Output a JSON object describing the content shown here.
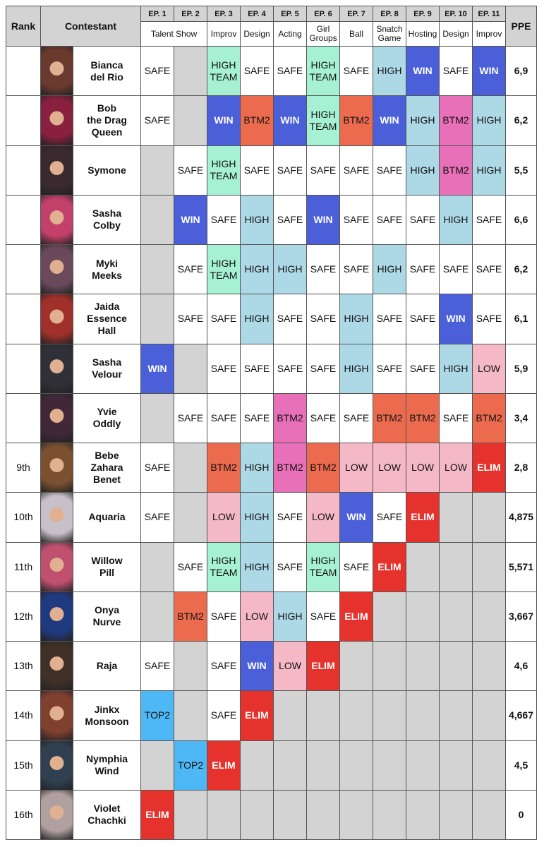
{
  "header": {
    "rank": "Rank",
    "contestant": "Contestant",
    "ppe": "PPE",
    "episodes": [
      "EP. 1",
      "EP. 2",
      "EP. 3",
      "EP. 4",
      "EP. 5",
      "EP. 6",
      "EP. 7",
      "EP. 8",
      "EP. 9",
      "EP. 10",
      "EP. 11"
    ],
    "challenges": [
      {
        "text": "Talent Show",
        "span": 2
      },
      {
        "text": "Improv",
        "span": 1
      },
      {
        "text": "Design",
        "span": 1
      },
      {
        "text": "Acting",
        "span": 1
      },
      {
        "text": "Girl\nGroups",
        "span": 1
      },
      {
        "text": "Ball",
        "span": 1
      },
      {
        "text": "Snatch\nGame",
        "span": 1
      },
      {
        "text": "Hosting",
        "span": 1
      },
      {
        "text": "Design",
        "span": 1
      },
      {
        "text": "Improv",
        "span": 1
      }
    ]
  },
  "rows": [
    {
      "rank": null,
      "name": "Bianca\ndel Rio",
      "ppe": "6,9",
      "cells": [
        {
          "text": "SAFE",
          "color": "#ffffff"
        },
        null,
        {
          "text": "HIGH\nTEAM",
          "color": "#a6f0d4"
        },
        {
          "text": "SAFE",
          "color": "#ffffff"
        },
        {
          "text": "SAFE",
          "color": "#ffffff"
        },
        {
          "text": "HIGH\nTEAM",
          "color": "#a6f0d4"
        },
        {
          "text": "SAFE",
          "color": "#ffffff"
        },
        {
          "text": "HIGH",
          "color": "#add8e6"
        },
        {
          "text": "WIN",
          "color": "#4a5fd8"
        },
        {
          "text": "SAFE",
          "color": "#ffffff"
        },
        {
          "text": "WIN",
          "color": "#4a5fd8"
        }
      ]
    },
    {
      "rank": null,
      "name": "Bob\nthe Drag\nQueen",
      "ppe": "6,2",
      "cells": [
        {
          "text": "SAFE",
          "color": "#ffffff"
        },
        null,
        {
          "text": "WIN",
          "color": "#4a5fd8"
        },
        {
          "text": "BTM2",
          "color": "#ec6b4f"
        },
        {
          "text": "WIN",
          "color": "#4a5fd8"
        },
        {
          "text": "HIGH\nTEAM",
          "color": "#a6f0d4"
        },
        {
          "text": "BTM2",
          "color": "#ec6b4f"
        },
        {
          "text": "WIN",
          "color": "#4a5fd8"
        },
        {
          "text": "HIGH",
          "color": "#add8e6"
        },
        {
          "text": "BTM2",
          "color": "#e870b8"
        },
        {
          "text": "HIGH",
          "color": "#add8e6"
        }
      ]
    },
    {
      "rank": null,
      "name": "Symone",
      "ppe": "5,5",
      "cells": [
        null,
        {
          "text": "SAFE",
          "color": "#ffffff"
        },
        {
          "text": "HIGH\nTEAM",
          "color": "#a6f0d4"
        },
        {
          "text": "SAFE",
          "color": "#ffffff"
        },
        {
          "text": "SAFE",
          "color": "#ffffff"
        },
        {
          "text": "SAFE",
          "color": "#ffffff"
        },
        {
          "text": "SAFE",
          "color": "#ffffff"
        },
        {
          "text": "SAFE",
          "color": "#ffffff"
        },
        {
          "text": "HIGH",
          "color": "#add8e6"
        },
        {
          "text": "BTM2",
          "color": "#e870b8"
        },
        {
          "text": "HIGH",
          "color": "#add8e6"
        }
      ]
    },
    {
      "rank": null,
      "name": "Sasha\nColby",
      "ppe": "6,6",
      "cells": [
        null,
        {
          "text": "WIN",
          "color": "#4a5fd8"
        },
        {
          "text": "SAFE",
          "color": "#ffffff"
        },
        {
          "text": "HIGH",
          "color": "#add8e6"
        },
        {
          "text": "SAFE",
          "color": "#ffffff"
        },
        {
          "text": "WIN",
          "color": "#4a5fd8"
        },
        {
          "text": "SAFE",
          "color": "#ffffff"
        },
        {
          "text": "SAFE",
          "color": "#ffffff"
        },
        {
          "text": "SAFE",
          "color": "#ffffff"
        },
        {
          "text": "HIGH",
          "color": "#add8e6"
        },
        {
          "text": "SAFE",
          "color": "#ffffff"
        }
      ]
    },
    {
      "rank": null,
      "name": "Myki\nMeeks",
      "ppe": "6,2",
      "cells": [
        null,
        {
          "text": "SAFE",
          "color": "#ffffff"
        },
        {
          "text": "HIGH\nTEAM",
          "color": "#a6f0d4"
        },
        {
          "text": "HIGH",
          "color": "#add8e6"
        },
        {
          "text": "HIGH",
          "color": "#add8e6"
        },
        {
          "text": "SAFE",
          "color": "#ffffff"
        },
        {
          "text": "SAFE",
          "color": "#ffffff"
        },
        {
          "text": "HIGH",
          "color": "#add8e6"
        },
        {
          "text": "SAFE",
          "color": "#ffffff"
        },
        {
          "text": "SAFE",
          "color": "#ffffff"
        },
        {
          "text": "SAFE",
          "color": "#ffffff"
        }
      ]
    },
    {
      "rank": null,
      "name": "Jaida\nEssence\nHall",
      "ppe": "6,1",
      "cells": [
        null,
        {
          "text": "SAFE",
          "color": "#ffffff"
        },
        {
          "text": "SAFE",
          "color": "#ffffff"
        },
        {
          "text": "HIGH",
          "color": "#add8e6"
        },
        {
          "text": "SAFE",
          "color": "#ffffff"
        },
        {
          "text": "SAFE",
          "color": "#ffffff"
        },
        {
          "text": "HIGH",
          "color": "#add8e6"
        },
        {
          "text": "SAFE",
          "color": "#ffffff"
        },
        {
          "text": "SAFE",
          "color": "#ffffff"
        },
        {
          "text": "WIN",
          "color": "#4a5fd8"
        },
        {
          "text": "SAFE",
          "color": "#ffffff"
        }
      ]
    },
    {
      "rank": null,
      "name": "Sasha\nVelour",
      "ppe": "5,9",
      "cells": [
        {
          "text": "WIN",
          "color": "#4a5fd8"
        },
        null,
        {
          "text": "SAFE",
          "color": "#ffffff"
        },
        {
          "text": "SAFE",
          "color": "#ffffff"
        },
        {
          "text": "SAFE",
          "color": "#ffffff"
        },
        {
          "text": "SAFE",
          "color": "#ffffff"
        },
        {
          "text": "HIGH",
          "color": "#add8e6"
        },
        {
          "text": "SAFE",
          "color": "#ffffff"
        },
        {
          "text": "SAFE",
          "color": "#ffffff"
        },
        {
          "text": "HIGH",
          "color": "#add8e6"
        },
        {
          "text": "LOW",
          "color": "#f4b8c6"
        }
      ]
    },
    {
      "rank": null,
      "name": "Yvie\nOddly",
      "ppe": "3,4",
      "cells": [
        null,
        {
          "text": "SAFE",
          "color": "#ffffff"
        },
        {
          "text": "SAFE",
          "color": "#ffffff"
        },
        {
          "text": "SAFE",
          "color": "#ffffff"
        },
        {
          "text": "BTM2",
          "color": "#e870b8"
        },
        {
          "text": "SAFE",
          "color": "#ffffff"
        },
        {
          "text": "SAFE",
          "color": "#ffffff"
        },
        {
          "text": "BTM2",
          "color": "#ec6b4f"
        },
        {
          "text": "BTM2",
          "color": "#ec6b4f"
        },
        {
          "text": "SAFE",
          "color": "#ffffff"
        },
        {
          "text": "BTM2",
          "color": "#ec6b4f"
        }
      ]
    },
    {
      "rank": "9th",
      "name": "Bebe\nZahara\nBenet",
      "ppe": "2,8",
      "cells": [
        {
          "text": "SAFE",
          "color": "#ffffff"
        },
        null,
        {
          "text": "BTM2",
          "color": "#ec6b4f"
        },
        {
          "text": "HIGH",
          "color": "#add8e6"
        },
        {
          "text": "BTM2",
          "color": "#e870b8"
        },
        {
          "text": "BTM2",
          "color": "#ec6b4f"
        },
        {
          "text": "LOW",
          "color": "#f4b8c6"
        },
        {
          "text": "LOW",
          "color": "#f4b8c6"
        },
        {
          "text": "LOW",
          "color": "#f4b8c6"
        },
        {
          "text": "LOW",
          "color": "#f4b8c6"
        },
        {
          "text": "ELIM",
          "color": "#e5322d"
        }
      ]
    },
    {
      "rank": "10th",
      "name": "Aquaria",
      "ppe": "4,875",
      "cells": [
        {
          "text": "SAFE",
          "color": "#ffffff"
        },
        null,
        {
          "text": "LOW",
          "color": "#f4b8c6"
        },
        {
          "text": "HIGH",
          "color": "#add8e6"
        },
        {
          "text": "SAFE",
          "color": "#ffffff"
        },
        {
          "text": "LOW",
          "color": "#f4b8c6"
        },
        {
          "text": "WIN",
          "color": "#4a5fd8"
        },
        {
          "text": "SAFE",
          "color": "#ffffff"
        },
        {
          "text": "ELIM",
          "color": "#e5322d"
        },
        null,
        null
      ]
    },
    {
      "rank": "11th",
      "name": "Willow\nPill",
      "ppe": "5,571",
      "cells": [
        null,
        {
          "text": "SAFE",
          "color": "#ffffff"
        },
        {
          "text": "HIGH\nTEAM",
          "color": "#a6f0d4"
        },
        {
          "text": "HIGH",
          "color": "#add8e6"
        },
        {
          "text": "SAFE",
          "color": "#ffffff"
        },
        {
          "text": "HIGH\nTEAM",
          "color": "#a6f0d4"
        },
        {
          "text": "SAFE",
          "color": "#ffffff"
        },
        {
          "text": "ELIM",
          "color": "#e5322d"
        },
        null,
        null,
        null
      ]
    },
    {
      "rank": "12th",
      "name": "Onya\nNurve",
      "ppe": "3,667",
      "cells": [
        null,
        {
          "text": "BTM2",
          "color": "#ec6b4f"
        },
        {
          "text": "SAFE",
          "color": "#ffffff"
        },
        {
          "text": "LOW",
          "color": "#f4b8c6"
        },
        {
          "text": "HIGH",
          "color": "#add8e6"
        },
        {
          "text": "SAFE",
          "color": "#ffffff"
        },
        {
          "text": "ELIM",
          "color": "#e5322d"
        },
        null,
        null,
        null,
        null
      ]
    },
    {
      "rank": "13th",
      "name": "Raja",
      "ppe": "4,6",
      "cells": [
        {
          "text": "SAFE",
          "color": "#ffffff"
        },
        null,
        {
          "text": "SAFE",
          "color": "#ffffff"
        },
        {
          "text": "WIN",
          "color": "#4a5fd8"
        },
        {
          "text": "LOW",
          "color": "#f4b8c6"
        },
        {
          "text": "ELIM",
          "color": "#e5322d"
        },
        null,
        null,
        null,
        null,
        null
      ]
    },
    {
      "rank": "14th",
      "name": "Jinkx\nMonsoon",
      "ppe": "4,667",
      "cells": [
        {
          "text": "TOP2",
          "color": "#4db8f5"
        },
        null,
        {
          "text": "SAFE",
          "color": "#ffffff"
        },
        {
          "text": "ELIM",
          "color": "#e5322d"
        },
        null,
        null,
        null,
        null,
        null,
        null,
        null
      ]
    },
    {
      "rank": "15th",
      "name": "Nymphia\nWind",
      "ppe": "4,5",
      "cells": [
        null,
        {
          "text": "TOP2",
          "color": "#4db8f5"
        },
        {
          "text": "ELIM",
          "color": "#e5322d"
        },
        null,
        null,
        null,
        null,
        null,
        null,
        null,
        null
      ]
    },
    {
      "rank": "16th",
      "name": "Violet\nChachki",
      "ppe": "0",
      "cells": [
        {
          "text": "ELIM",
          "color": "#e5322d"
        },
        null,
        null,
        null,
        null,
        null,
        null,
        null,
        null,
        null,
        null
      ]
    }
  ]
}
